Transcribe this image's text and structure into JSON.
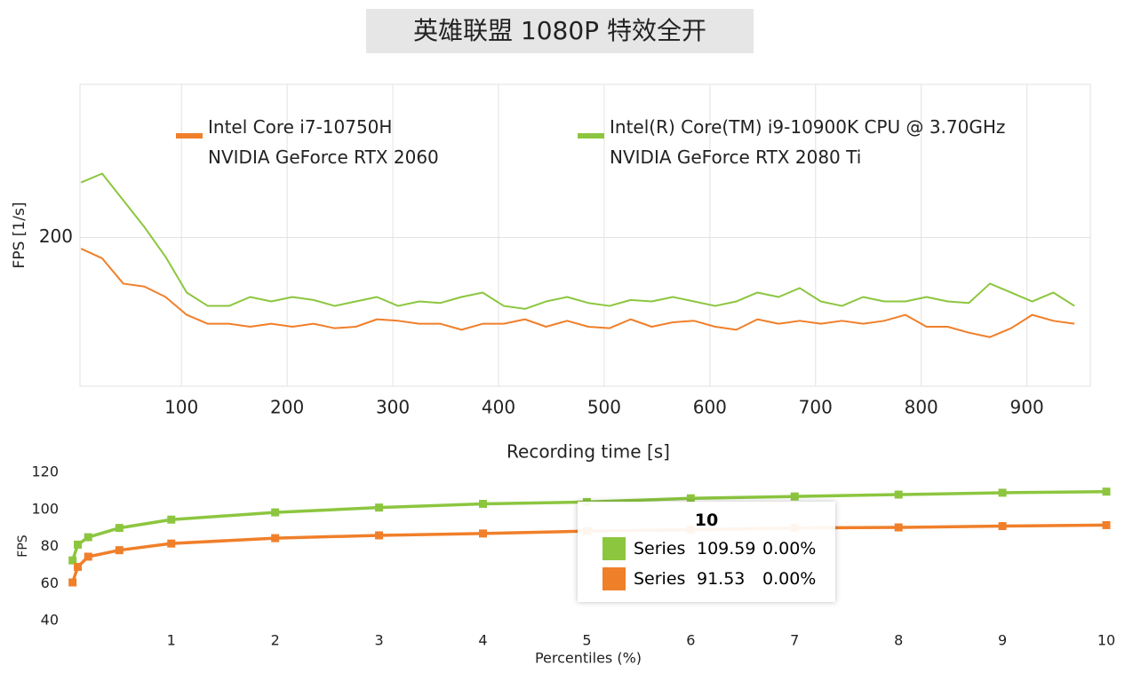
{
  "chart_data": [
    {
      "type": "line",
      "title": "英雄联盟 1080P 特效全开",
      "x_label": "Recording time [s]",
      "y_label": "FPS [1/s]",
      "x": [
        5,
        25,
        45,
        65,
        85,
        105,
        125,
        145,
        165,
        185,
        205,
        225,
        245,
        265,
        285,
        305,
        325,
        345,
        365,
        385,
        405,
        425,
        445,
        465,
        485,
        505,
        525,
        545,
        565,
        585,
        605,
        625,
        645,
        665,
        685,
        705,
        725,
        745,
        765,
        785,
        805,
        825,
        845,
        865,
        885,
        905,
        925,
        945
      ],
      "series": [
        {
          "name": "Intel Core i7-10750H\nNVIDIA GeForce RTX 2060",
          "color": "#f07f2a",
          "values": [
            192.5,
            186,
            169,
            167,
            160,
            148,
            142,
            142,
            140,
            142,
            140,
            142,
            139,
            140,
            145,
            144,
            142,
            142,
            138,
            142,
            142,
            145,
            140,
            144,
            140,
            139,
            145,
            140,
            143,
            144,
            140,
            138,
            145,
            142,
            144,
            142,
            144,
            142,
            144,
            148,
            140,
            140,
            136,
            133,
            139,
            148,
            144,
            142
          ]
        },
        {
          "name": "Intel(R) Core(TM) i9-10900K CPU @ 3.70GHz\nNVIDIA GeForce RTX 2080 Ti",
          "color": "#8cc63f",
          "values": [
            237,
            243,
            225,
            207,
            187,
            163,
            154,
            154,
            160,
            157,
            160,
            158,
            154,
            157,
            160,
            154,
            157,
            156,
            160,
            163,
            154,
            152,
            157,
            160,
            156,
            154,
            158,
            157,
            160,
            157,
            154,
            157,
            163,
            160,
            166,
            157,
            154,
            160,
            157,
            157,
            160,
            157,
            156,
            169,
            163,
            157,
            163,
            154
          ]
        }
      ],
      "xlim": [
        4,
        960
      ],
      "ylim": [
        100,
        303
      ],
      "xticks": [
        100,
        200,
        300,
        400,
        500,
        600,
        700,
        800,
        900
      ],
      "yticks": [
        200
      ],
      "grid": true
    },
    {
      "type": "line",
      "x_label": "Percentiles (%)",
      "y_label": "FPS",
      "x": [
        0.05,
        0.1,
        0.2,
        0.5,
        1,
        2,
        3,
        4,
        5,
        6,
        7,
        8,
        9,
        10
      ],
      "series": [
        {
          "name": "Series",
          "color": "#8cc63f",
          "values": [
            72.5,
            81,
            85,
            90,
            94.5,
            98.4,
            101,
            103,
            104,
            106,
            107,
            108,
            109,
            109.59
          ]
        },
        {
          "name": "Series",
          "color": "#f07f2a",
          "values": [
            60.6,
            69,
            74.5,
            78,
            81.6,
            84.5,
            86,
            87,
            88.3,
            89,
            90,
            90.3,
            91,
            91.53
          ]
        }
      ],
      "tooltip_shares": [
        "0.00%",
        "0.00%"
      ],
      "xlim": [
        -0.05,
        10
      ],
      "ylim": [
        40,
        120
      ],
      "xticks": [
        1,
        2,
        3,
        4,
        5,
        6,
        7,
        8,
        9,
        10
      ],
      "yticks": [
        40,
        60,
        80,
        100,
        120
      ],
      "markers": true
    }
  ]
}
